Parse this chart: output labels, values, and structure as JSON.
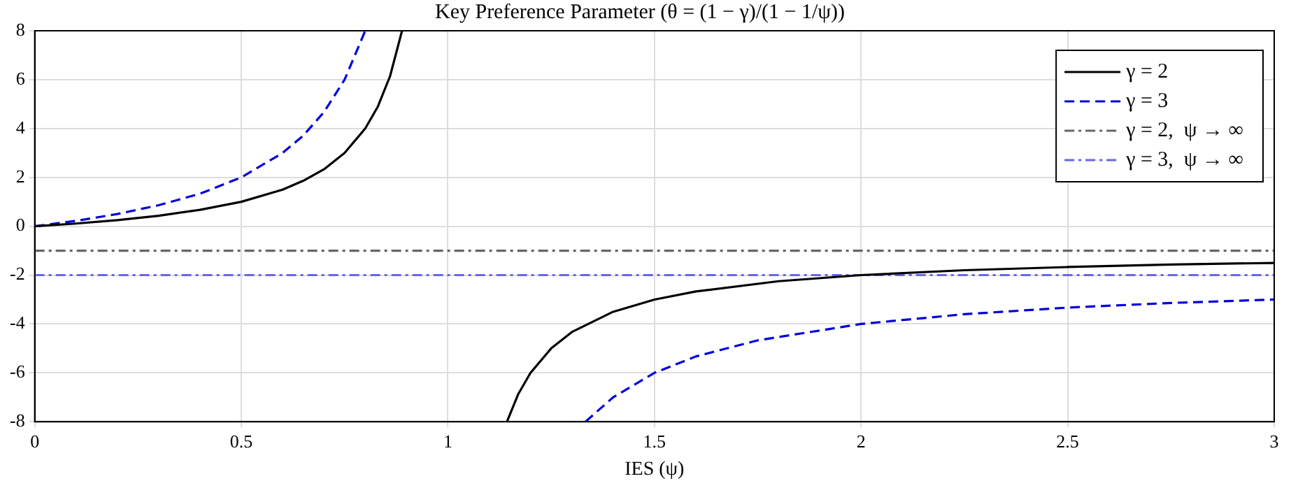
{
  "chart_data": {
    "type": "line",
    "title": "Key Preference Parameter (θ = (1 − γ)/(1 − 1/ψ))",
    "xlabel": "IES (ψ)",
    "xlim": [
      0,
      3
    ],
    "xticks": [
      0,
      0.5,
      1,
      1.5,
      2,
      2.5,
      3
    ],
    "ylim": [
      -8,
      8
    ],
    "yticks": [
      -8,
      -6,
      -4,
      -2,
      0,
      2,
      4,
      6,
      8
    ],
    "grid": true,
    "legend": "top right",
    "marker": "none",
    "series": [
      {
        "name": "γ = 2",
        "color": "#000000",
        "line_style": "solid",
        "x": [
          0,
          0.1,
          0.2,
          0.3,
          0.4,
          0.5,
          0.6,
          0.65,
          0.7,
          0.75,
          0.8,
          0.83,
          0.86,
          0.889,
          1,
          1.143,
          1.17,
          1.2,
          1.25,
          1.3,
          1.4,
          1.5,
          1.6,
          1.8,
          2,
          2.25,
          2.5,
          2.75,
          3
        ],
        "values": [
          0,
          0.11,
          0.25,
          0.43,
          0.67,
          1,
          1.5,
          1.86,
          2.33,
          3,
          4,
          4.88,
          6.14,
          8,
          null,
          -8,
          -6.88,
          -6,
          -5,
          -4.33,
          -3.5,
          -3,
          -2.67,
          -2.25,
          -2,
          -1.8,
          -1.67,
          -1.57,
          -1.5
        ]
      },
      {
        "name": "γ = 3",
        "color": "#0000dd",
        "line_style": "dashed",
        "x": [
          0,
          0.1,
          0.2,
          0.3,
          0.4,
          0.5,
          0.6,
          0.65,
          0.7,
          0.75,
          0.8,
          1,
          1.333,
          1.4,
          1.5,
          1.6,
          1.75,
          2,
          2.25,
          2.5,
          2.75,
          3
        ],
        "values": [
          0,
          0.22,
          0.5,
          0.86,
          1.33,
          2,
          3,
          3.71,
          4.67,
          6,
          8,
          null,
          -8,
          -7,
          -6,
          -5.33,
          -4.67,
          -4,
          -3.6,
          -3.33,
          -3.14,
          -3
        ]
      },
      {
        "name": "γ = 2,  ψ → ∞",
        "color": "#666666",
        "line_style": "dashdot",
        "x": [
          0,
          3
        ],
        "values": [
          -1,
          -1
        ]
      },
      {
        "name": "γ = 3,  ψ → ∞",
        "color": "#6666ee",
        "line_style": "dashdot",
        "x": [
          0,
          3
        ],
        "values": [
          -2,
          -2
        ]
      }
    ]
  }
}
